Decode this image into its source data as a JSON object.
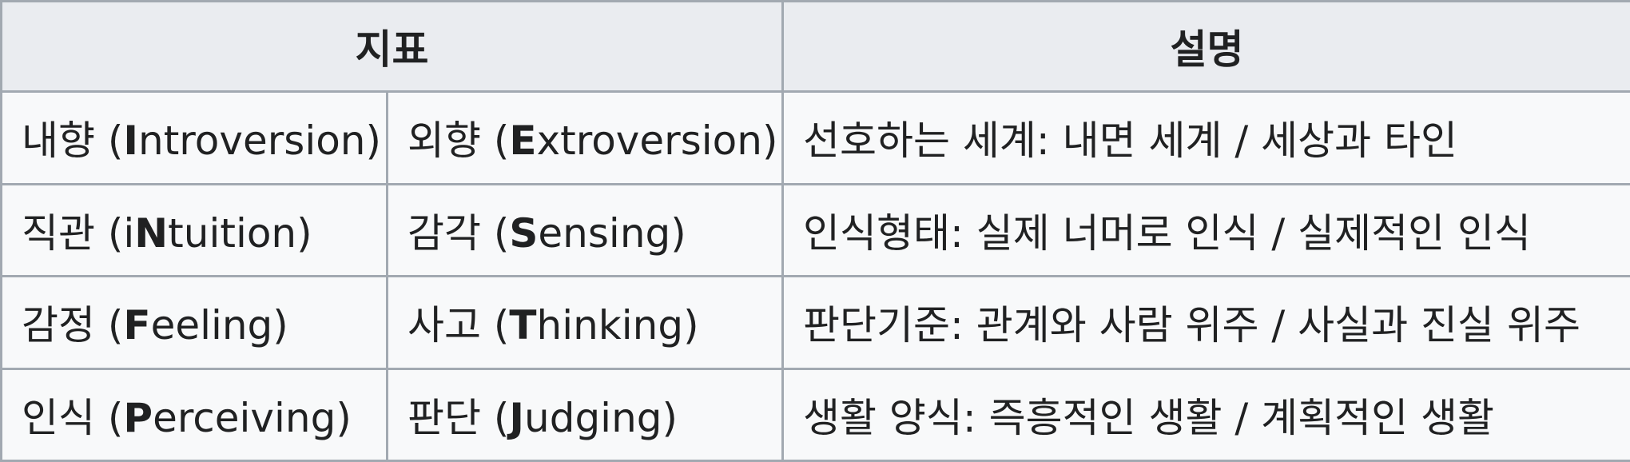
{
  "table": {
    "headers": {
      "indicator": "지표",
      "description": "설명"
    },
    "rows": [
      {
        "left": {
          "ko": "내향",
          "open": " (",
          "letter": "I",
          "rest": "ntroversion",
          "close": ")"
        },
        "right": {
          "ko": "외향",
          "open": " (",
          "letter": "E",
          "rest": "xtroversion",
          "close": ")"
        },
        "description": "선호하는 세계: 내면 세계 / 세상과 타인"
      },
      {
        "left": {
          "ko": "직관",
          "open": " (i",
          "letter": "N",
          "rest": "tuition",
          "close": ")"
        },
        "right": {
          "ko": "감각",
          "open": " (",
          "letter": "S",
          "rest": "ensing",
          "close": ")"
        },
        "description": "인식형태: 실제 너머로 인식 / 실제적인 인식"
      },
      {
        "left": {
          "ko": "감정",
          "open": " (",
          "letter": "F",
          "rest": "eeling",
          "close": ")"
        },
        "right": {
          "ko": "사고",
          "open": " (",
          "letter": "T",
          "rest": "hinking",
          "close": ")"
        },
        "description": "판단기준: 관계와 사람 위주 / 사실과 진실 위주"
      },
      {
        "left": {
          "ko": "인식",
          "open": " (",
          "letter": "P",
          "rest": "erceiving",
          "close": ")"
        },
        "right": {
          "ko": "판단",
          "open": " (",
          "letter": "J",
          "rest": "udging",
          "close": ")"
        },
        "description": "생활 양식: 즉흥적인 생활 / 계획적인 생활"
      }
    ]
  }
}
